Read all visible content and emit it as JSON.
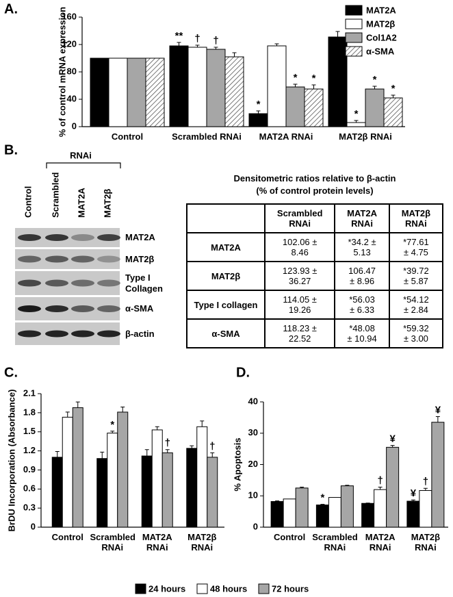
{
  "chart_data": [
    {
      "type": "bar",
      "panel_label": "A.",
      "ylabel": "% of control mRNA expression",
      "categories": [
        "Control",
        "Scrambled RNAi",
        "MAT2A RNAi",
        "MAT2β RNAi"
      ],
      "ylim": [
        0,
        160
      ],
      "yticks": [
        0,
        40,
        80,
        120,
        160
      ],
      "legend": "right-top",
      "series": [
        {
          "name": "MAT2A",
          "color": "#000000",
          "values": [
            100,
            118,
            19,
            131
          ],
          "errors": [
            0,
            5,
            4,
            8
          ],
          "markers": [
            null,
            "**",
            "*",
            null
          ]
        },
        {
          "name": "MAT2β",
          "color": "#ffffff",
          "values": [
            100,
            116,
            118,
            6
          ],
          "errors": [
            0,
            3,
            3,
            3
          ],
          "markers": [
            null,
            "†",
            null,
            "*"
          ]
        },
        {
          "name": "Col1A2",
          "color": "#a6a6a6",
          "values": [
            100,
            113,
            58,
            55
          ],
          "errors": [
            0,
            3,
            4,
            4
          ],
          "markers": [
            null,
            "†",
            "*",
            "*"
          ]
        },
        {
          "name": "α-SMA",
          "color": "#ffffff",
          "pattern": "hatch",
          "values": [
            100,
            102,
            55,
            42
          ],
          "errors": [
            0,
            6,
            6,
            4
          ],
          "markers": [
            null,
            null,
            "*",
            "*"
          ]
        }
      ]
    },
    {
      "type": "bar",
      "panel_label": "C.",
      "ylabel": "BrDU Incorporation (Absorbance)",
      "categories": [
        "Control",
        "Scrambled RNAi",
        "MAT2A RNAi",
        "MAT2β RNAi"
      ],
      "ylim": [
        0,
        2.1
      ],
      "yticks": [
        0,
        0.3,
        0.6,
        0.9,
        1.2,
        1.5,
        1.8,
        2.1
      ],
      "legend": "bottom",
      "series": [
        {
          "name": "24 hours",
          "color": "#000000",
          "values": [
            1.1,
            1.08,
            1.12,
            1.24
          ],
          "errors": [
            0.09,
            0.1,
            0.1,
            0.04
          ],
          "markers": [
            null,
            null,
            null,
            null
          ]
        },
        {
          "name": "48 hours",
          "color": "#ffffff",
          "values": [
            1.73,
            1.48,
            1.53,
            1.58
          ],
          "errors": [
            0.08,
            0.03,
            0.05,
            0.09
          ],
          "markers": [
            null,
            "*",
            null,
            null
          ]
        },
        {
          "name": "72 hours",
          "color": "#a6a6a6",
          "values": [
            1.88,
            1.81,
            1.17,
            1.1
          ],
          "errors": [
            0.09,
            0.08,
            0.05,
            0.07
          ],
          "markers": [
            null,
            null,
            "†",
            "†"
          ]
        }
      ]
    },
    {
      "type": "bar",
      "panel_label": "D.",
      "ylabel": "% Apoptosis",
      "categories": [
        "Control",
        "Scrambled RNAi",
        "MAT2A RNAi",
        "MAT2β RNAi"
      ],
      "ylim": [
        0,
        40
      ],
      "yticks": [
        0,
        10,
        20,
        30,
        40
      ],
      "series": [
        {
          "color": "#000000",
          "values": [
            8.2,
            7.1,
            7.6,
            8.3
          ],
          "errors": [
            0.2,
            0.2,
            0.1,
            0.4
          ],
          "markers": [
            null,
            "*",
            null,
            "¥"
          ]
        },
        {
          "color": "#ffffff",
          "values": [
            9.0,
            9.5,
            12.0,
            11.7
          ],
          "errors": [
            0,
            0,
            0.8,
            0.7
          ],
          "markers": [
            null,
            null,
            "†",
            "†"
          ]
        },
        {
          "color": "#a6a6a6",
          "values": [
            12.5,
            13.2,
            25.5,
            33.5
          ],
          "errors": [
            0.3,
            0.2,
            0.6,
            1.8
          ],
          "markers": [
            null,
            null,
            "¥",
            "¥"
          ]
        }
      ]
    }
  ],
  "panel_b": {
    "panel_label": "B.",
    "rnai_label": "RNAi",
    "lanes": [
      "Control",
      "Scrambled",
      "MAT2A",
      "MAT2β"
    ],
    "blot_rows": [
      "MAT2A",
      "MAT2β",
      "Type I Collagen",
      "α-SMA",
      "β-actin"
    ],
    "table": {
      "title": [
        "Densitometric ratios relative to β-actin",
        "(% of control protein levels)"
      ],
      "columns": [
        "Scrambled RNAi",
        "MAT2A RNAi",
        "MAT2β RNAi"
      ],
      "rows": [
        {
          "label": "MAT2A",
          "cells": [
            "102.06 ± 8.46",
            "*34.2 ± 5.13",
            "*77.61 ± 4.75"
          ]
        },
        {
          "label": "MAT2β",
          "cells": [
            "123.93 ± 36.27",
            "106.47 ± 8.96",
            "*39.72 ± 5.87"
          ]
        },
        {
          "label": "Type I collagen",
          "cells": [
            "114.05 ± 19.26",
            "*56.03 ± 6.33",
            "*54.12 ± 2.84"
          ]
        },
        {
          "label": "α-SMA",
          "cells": [
            "118.23 ± 22.52",
            "*48.08 ± 10.94",
            "*59.32 ± 3.00"
          ]
        }
      ]
    }
  }
}
